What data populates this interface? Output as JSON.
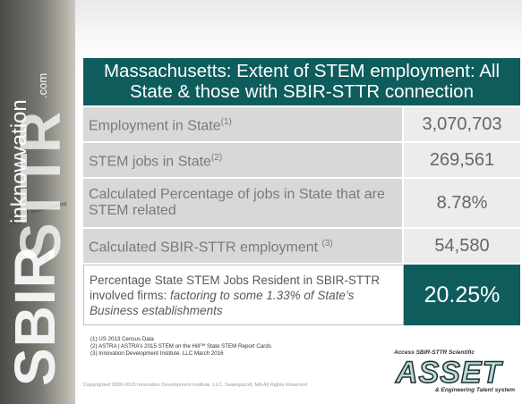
{
  "sidebar": {
    "logo": "SBIR",
    "logo2": "STTR",
    "site": "inknowvation",
    "domain": ".com",
    "stamp": "United States Patent And"
  },
  "table": {
    "title": "Massachusetts: Extent of STEM employment: All State & those with SBIR-STTR connection",
    "rows": [
      {
        "label": "Employment in State",
        "note": "(1)",
        "value": "3,070,703"
      },
      {
        "label": "STEM jobs in State",
        "note": "(2)",
        "value": "269,561"
      },
      {
        "label": "Calculated Percentage of jobs in State that are STEM related",
        "value": "8.78%"
      },
      {
        "label": "Calculated SBIR-STTR employment ",
        "note": "(3)",
        "value": "54,580"
      },
      {
        "label": "Percentage State STEM Jobs Resident in SBIR-STTR involved firms: ",
        "emphasis": "factoring to some 1.33% of State’s Business establishments",
        "value": "20.25%"
      }
    ]
  },
  "footnotes": [
    "(1) US 2013 Census Data",
    "(2) ASTRA | ASTRA’s 2015 STEM on the Hill™ State STEM Report Cards",
    "(3) Innovation Development Institute. LLC March 2016"
  ],
  "copyright": "Copyrighted 2000-2015 Innovation Development Institute. LLC. Swampscott, MA   All Rights Reserved",
  "brand": {
    "top": "Access SBIR-STTR Scientific",
    "name": "ASSET",
    "bottom": "& Engineering Talent system"
  }
}
